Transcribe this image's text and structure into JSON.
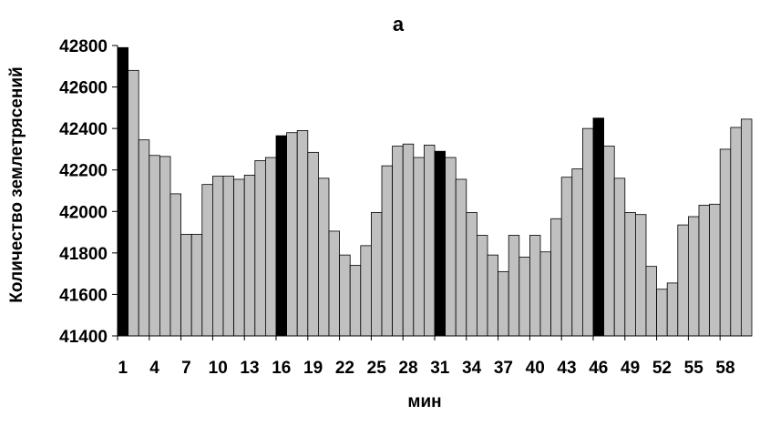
{
  "chart_data": {
    "type": "bar",
    "title": "а",
    "xlabel": "мин",
    "ylabel": "Количество землетрясений",
    "ylim": [
      41400,
      42800
    ],
    "yticks": [
      41400,
      41600,
      41800,
      42000,
      42200,
      42400,
      42600,
      42800
    ],
    "xtick_labels": [
      "1",
      "4",
      "7",
      "10",
      "13",
      "16",
      "19",
      "22",
      "25",
      "28",
      "31",
      "34",
      "37",
      "40",
      "43",
      "46",
      "49",
      "52",
      "55",
      "58"
    ],
    "grid": false,
    "legend": "none",
    "categories": [
      1,
      2,
      3,
      4,
      5,
      6,
      7,
      8,
      9,
      10,
      11,
      12,
      13,
      14,
      15,
      16,
      17,
      18,
      19,
      20,
      21,
      22,
      23,
      24,
      25,
      26,
      27,
      28,
      29,
      30,
      31,
      32,
      33,
      34,
      35,
      36,
      37,
      38,
      39,
      40,
      41,
      42,
      43,
      44,
      45,
      46,
      47,
      48,
      49,
      50,
      51,
      52,
      53,
      54,
      55,
      56,
      57,
      58,
      59,
      60
    ],
    "values": [
      42790,
      42680,
      42345,
      42270,
      42265,
      42085,
      41890,
      41890,
      42130,
      42170,
      42170,
      42155,
      42175,
      42245,
      42260,
      42365,
      42380,
      42390,
      42285,
      42160,
      41905,
      41790,
      41740,
      41835,
      41995,
      42220,
      42315,
      42325,
      42260,
      42320,
      42290,
      42260,
      42155,
      41995,
      41885,
      41790,
      41710,
      41885,
      41780,
      41885,
      41805,
      41965,
      42165,
      42205,
      42400,
      42450,
      42315,
      42160,
      41995,
      41985,
      41735,
      41625,
      41655,
      41935,
      41975,
      42030,
      42035,
      42300,
      42405,
      42445
    ],
    "highlighted": [
      1,
      16,
      31,
      46
    ],
    "colors": {
      "bar": "#c0c0c0",
      "highlight": "#000000",
      "outline": "#000000"
    }
  }
}
